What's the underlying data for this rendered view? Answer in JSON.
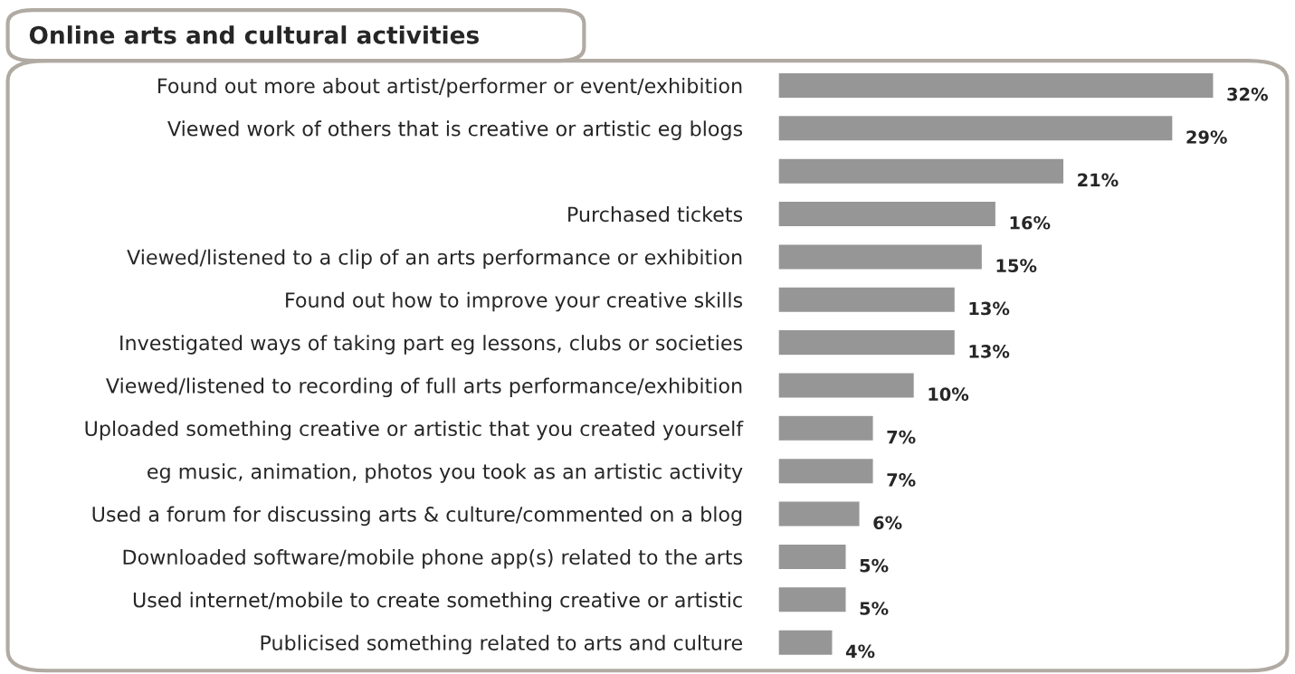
{
  "chart_data": {
    "type": "bar",
    "orientation": "horizontal",
    "title": "Online arts and cultural activities",
    "categories": [
      "Found out more about artist/performer or event/exhibition",
      "Viewed work of others that is creative or artistic eg blogs",
      null,
      "Purchased tickets",
      "Viewed/listened to a clip of an arts performance or exhibition",
      "Found out how to improve your creative skills",
      "Investigated ways of taking part eg lessons, clubs or societies",
      "Viewed/listened to recording of full arts performance/exhibition",
      "Uploaded something creative or artistic that you created yourself",
      "eg music, animation, photos you took as an artistic activity",
      "Used a forum for discussing arts & culture/commented on a blog",
      "Downloaded software/mobile phone app(s) related to the arts",
      "Used internet/mobile to create something creative or artistic",
      "Publicised something related to arts and culture"
    ],
    "values": [
      32,
      29,
      21,
      16,
      15,
      13,
      13,
      10,
      7,
      7,
      6,
      5,
      5,
      4
    ],
    "value_labels": [
      "32%",
      "29%",
      "21%",
      "16%",
      "15%",
      "13%",
      "13%",
      "10%",
      "7%",
      "7%",
      "6%",
      "5%",
      "5%",
      "4%"
    ],
    "color": "#969696"
  }
}
